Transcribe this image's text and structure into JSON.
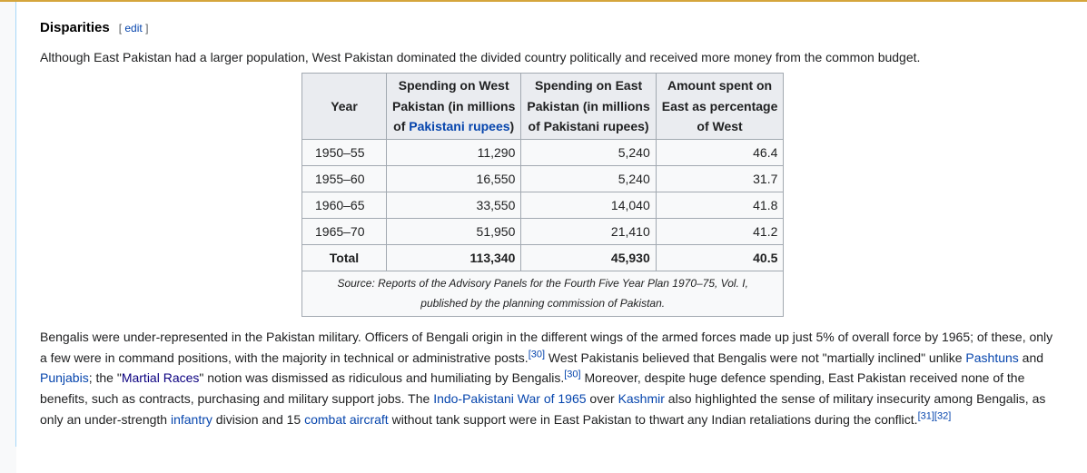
{
  "section": {
    "title": "Disparities",
    "edit_label": "edit"
  },
  "intro": "Although East Pakistan had a larger population, West Pakistan dominated the divided country politically and received more money from the common budget.",
  "table": {
    "headers": {
      "year": "Year",
      "west_line1": "Spending on West",
      "west_line2": "Pakistan (in millions",
      "west_line3a": "of ",
      "west_link": "Pakistani rupees",
      "west_line3b": ")",
      "east_line1": "Spending on East",
      "east_line2": "Pakistan (in millions",
      "east_line3": "of Pakistani rupees)",
      "pct_line1": "Amount spent on",
      "pct_line2": "East as percentage",
      "pct_line3": "of West"
    },
    "rows": [
      {
        "year": "1950–55",
        "west": "11,290",
        "east": "5,240",
        "pct": "46.4"
      },
      {
        "year": "1955–60",
        "west": "16,550",
        "east": "5,240",
        "pct": "31.7"
      },
      {
        "year": "1960–65",
        "west": "33,550",
        "east": "14,040",
        "pct": "41.8"
      },
      {
        "year": "1965–70",
        "west": "51,950",
        "east": "21,410",
        "pct": "41.2"
      }
    ],
    "total": {
      "label": "Total",
      "west": "113,340",
      "east": "45,930",
      "pct": "40.5"
    },
    "source_line1": "Source: Reports of the Advisory Panels for the Fourth Five Year Plan 1970–75, Vol. I,",
    "source_line2": "published by the planning commission of Pakistan."
  },
  "body": {
    "t1": "Bengalis were under-represented in the Pakistan military. Officers of Bengali origin in the different wings of the armed forces made up just 5% of overall force by 1965; of these, only a few were in command positions, with the majority in technical or administrative posts.",
    "ref30a": "[30]",
    "t2": " West Pakistanis believed that Bengalis were not \"martially inclined\" unlike ",
    "link_pashtuns": "Pashtuns",
    "t3": " and ",
    "link_punjabis": "Punjabis",
    "t4": "; the \"",
    "link_martial": "Martial Races",
    "t5": "\" notion was dismissed as ridiculous and humiliating by Bengalis.",
    "ref30b": "[30]",
    "t6": " Moreover, despite huge defence spending, East Pakistan received none of the benefits, such as contracts, purchasing and military support jobs. The ",
    "link_war": "Indo-Pakistani War of 1965",
    "t7": " over ",
    "link_kashmir": "Kashmir",
    "t8": " also highlighted the sense of military insecurity among Bengalis, as only an under-strength ",
    "link_infantry": "infantry",
    "t9": " division and 15 ",
    "link_aircraft": "combat aircraft",
    "t10": " without tank support were in East Pakistan to thwart any Indian retaliations during the conflict.",
    "ref31": "[31]",
    "ref32": "[32]"
  },
  "colors": {
    "link": "#0645ad",
    "visited_link": "#0b0080",
    "header_bg": "#eaecf0",
    "border": "#a2a9b1"
  }
}
